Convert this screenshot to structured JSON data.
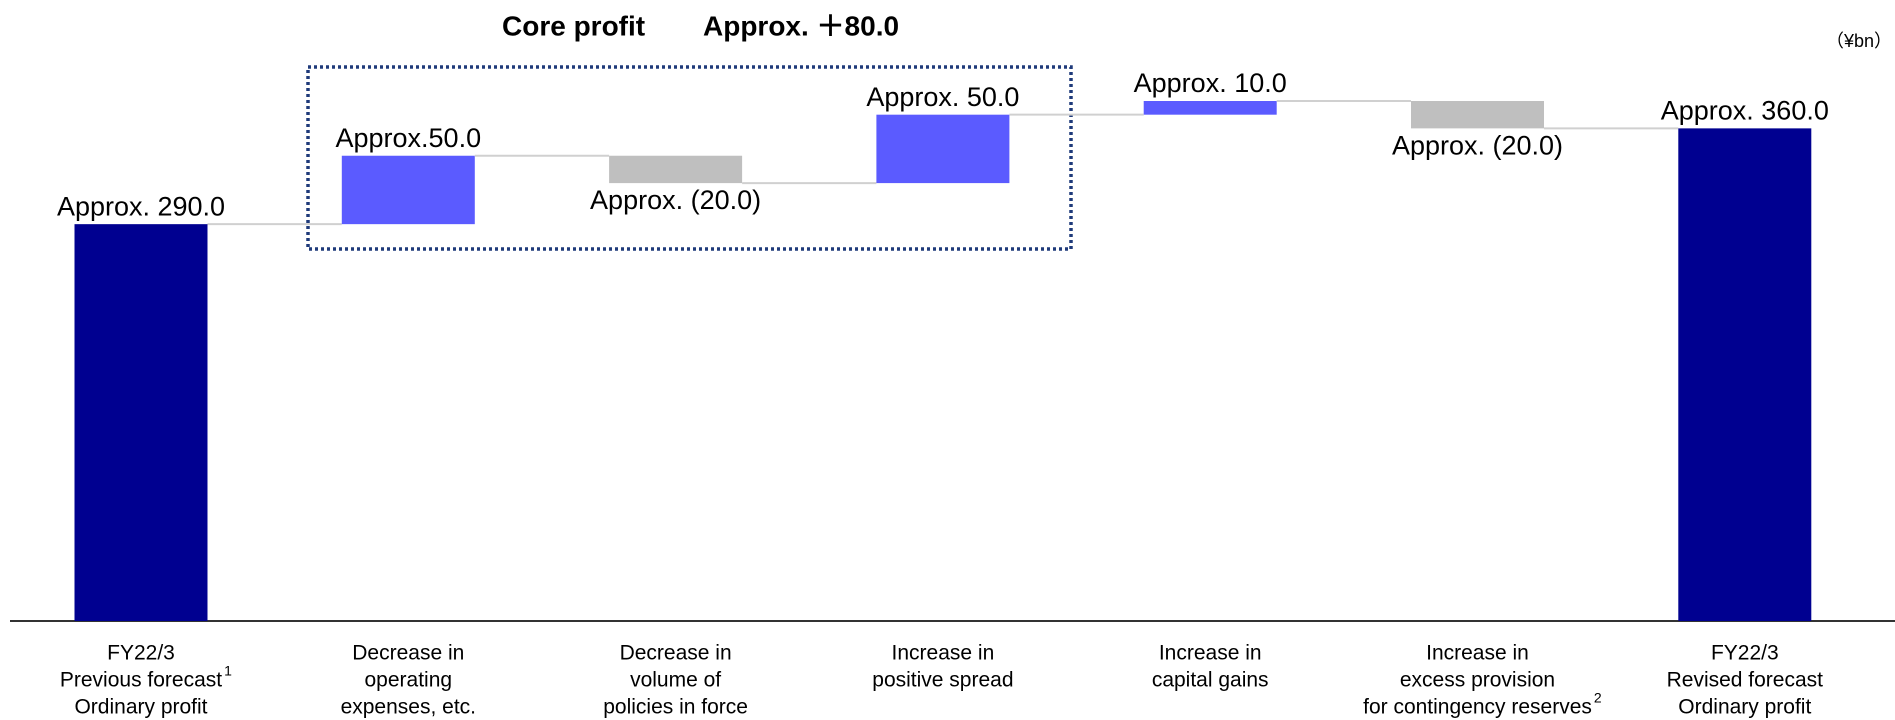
{
  "chart_data": {
    "type": "waterfall",
    "annotation": "Core profit",
    "annotation_value": "Approx. ＋80.0",
    "unit": "（¥bn）",
    "categories": [
      [
        "FY22/3",
        {
          "text": "Previous forecast",
          "sup": "1"
        },
        "Ordinary profit"
      ],
      [
        "Decrease in",
        "operating",
        "expenses, etc."
      ],
      [
        "Decrease in",
        "volume of",
        "policies in force"
      ],
      [
        "Increase in",
        "positive spread"
      ],
      [
        "Increase in",
        "capital gains"
      ],
      [
        "Increase in",
        "excess provision",
        {
          "text": "for contingency reserves",
          "sup": "2"
        }
      ],
      [
        "FY22/3",
        "Revised forecast",
        "Ordinary profit"
      ]
    ],
    "values": [
      290,
      50,
      -20,
      50,
      10,
      -20,
      360
    ],
    "value_labels": [
      "Approx. 290.0",
      "Approx.50.0",
      "Approx. (20.0)",
      "Approx. 50.0",
      "Approx. 10.0",
      "Approx. (20.0)",
      "Approx. 360.0"
    ],
    "kinds": [
      "total",
      "delta",
      "delta",
      "delta",
      "delta",
      "delta",
      "total"
    ],
    "colors": {
      "total": "#000090",
      "increase": "#5b5bff",
      "decrease": "#bfbfbf"
    }
  }
}
